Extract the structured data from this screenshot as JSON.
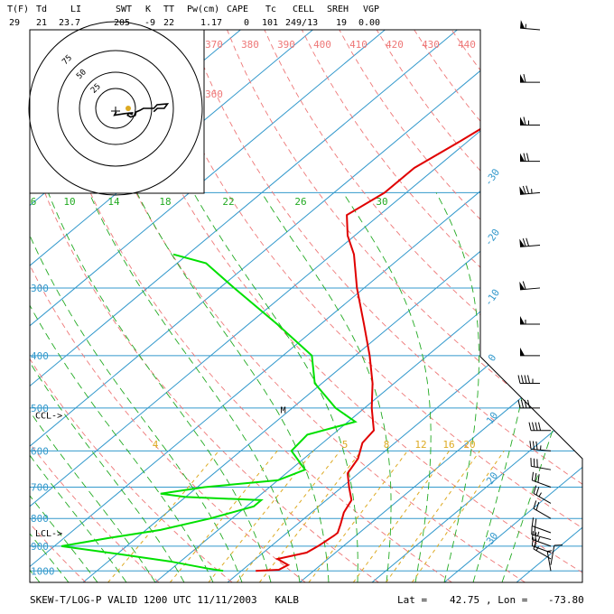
{
  "header": {
    "fields": [
      {
        "label": "T(F)",
        "value": "29"
      },
      {
        "label": "Td",
        "value": "21"
      },
      {
        "label": "LI",
        "value": "23.7"
      },
      {
        "label": "SWT",
        "value": "205"
      },
      {
        "label": "K",
        "value": "-9"
      },
      {
        "label": "TT",
        "value": "22"
      },
      {
        "label": "Pw(cm)",
        "value": "1.17"
      },
      {
        "label": "CAPE",
        "value": "0"
      },
      {
        "label": "Tc",
        "value": "101"
      },
      {
        "label": "CELL",
        "value": "249/13"
      },
      {
        "label": "SREH",
        "value": "19"
      },
      {
        "label": "VGP",
        "value": "0.00"
      }
    ]
  },
  "footer": {
    "title": "SKEW-T/LOG-P VALID 1200 UTC 11/11/2003   KALB",
    "lat_label": "Lat =",
    "lat_value": "42.75",
    "lon_label": ", Lon =",
    "lon_value": "-73.80"
  },
  "colors": {
    "temperature": "#e00000",
    "dewpoint": "#00e000",
    "isobar": "#3399cc",
    "isotherm": "#3399cc",
    "dry_adiabat": "#ee7777",
    "moist_adiabat": "#22aa22",
    "mixing_ratio": "#ddaa22",
    "frame": "#000000",
    "hodograph": "#000000"
  },
  "chart_data": {
    "type": "line",
    "title": "SKEW-T/LOG-P VALID 1200 UTC 11/11/2003   KALB",
    "pressure_ticks": [
      "300",
      "400",
      "500",
      "600",
      "700",
      "800",
      "900",
      "1000"
    ],
    "isotherm_labels": [
      "-30",
      "-20",
      "-10",
      "0",
      "10",
      "20",
      "30"
    ],
    "dry_adiabat_labels": [
      "370",
      "380",
      "390",
      "400",
      "410",
      "420",
      "430",
      "440",
      "360"
    ],
    "moist_adiabat_labels": [
      "6",
      "10",
      "14",
      "18",
      "22",
      "26",
      "30"
    ],
    "mixing_ratio_labels": [
      "4",
      "5",
      "8",
      "12",
      "16",
      "20"
    ],
    "level_markers": [
      {
        "label": "CCL->",
        "pressure": 515
      },
      {
        "label": "LCL->",
        "pressure": 850
      }
    ],
    "marker_m": {
      "label": "M",
      "pressure": 505
    },
    "hodograph_rings": [
      "75",
      "50",
      "25"
    ],
    "series": [
      {
        "name": "temperature",
        "points": [
          [
            1000,
            2.0
          ],
          [
            995,
            5.0
          ],
          [
            975,
            5.5
          ],
          [
            950,
            3.0
          ],
          [
            925,
            6.0
          ],
          [
            900,
            6.5
          ],
          [
            860,
            7.0
          ],
          [
            850,
            7.0
          ],
          [
            820,
            6.0
          ],
          [
            780,
            4.5
          ],
          [
            740,
            3.5
          ],
          [
            700,
            1.0
          ],
          [
            660,
            -1.5
          ],
          [
            620,
            -2.5
          ],
          [
            580,
            -4.5
          ],
          [
            550,
            -5.0
          ],
          [
            500,
            -9.0
          ],
          [
            450,
            -13.0
          ],
          [
            400,
            -18.0
          ],
          [
            350,
            -24.0
          ],
          [
            300,
            -31.0
          ],
          [
            260,
            -37.0
          ],
          [
            240,
            -41.0
          ],
          [
            220,
            -44.5
          ],
          [
            200,
            -43.0
          ],
          [
            180,
            -43.0
          ],
          [
            160,
            -41.0
          ],
          [
            130,
            -38.0
          ],
          [
            115,
            -38.5
          ],
          [
            100,
            -36.0
          ]
        ]
      },
      {
        "name": "dewpoint",
        "points": [
          [
            1000,
            -2.5
          ],
          [
            990,
            -5.0
          ],
          [
            960,
            -11.5
          ],
          [
            930,
            -20.0
          ],
          [
            900,
            -29.0
          ],
          [
            870,
            -24.0
          ],
          [
            840,
            -18.0
          ],
          [
            800,
            -13.0
          ],
          [
            760,
            -9.0
          ],
          [
            740,
            -9.0
          ],
          [
            730,
            -20.0
          ],
          [
            720,
            -24.0
          ],
          [
            700,
            -19.0
          ],
          [
            680,
            -10.0
          ],
          [
            650,
            -8.0
          ],
          [
            600,
            -13.0
          ],
          [
            560,
            -13.5
          ],
          [
            530,
            -9.0
          ],
          [
            500,
            -14.0
          ],
          [
            450,
            -21.0
          ],
          [
            400,
            -26.0
          ],
          [
            350,
            -36.0
          ],
          [
            300,
            -48.0
          ],
          [
            270,
            -56.0
          ],
          [
            260,
            -62.0
          ]
        ]
      }
    ],
    "wind_barbs": [
      {
        "pressure": 1000,
        "dir": 350,
        "speed": 5
      },
      {
        "pressure": 975,
        "dir": 10,
        "speed": 10
      },
      {
        "pressure": 950,
        "dir": 300,
        "speed": 15
      },
      {
        "pressure": 925,
        "dir": 290,
        "speed": 20
      },
      {
        "pressure": 900,
        "dir": 290,
        "speed": 25
      },
      {
        "pressure": 875,
        "dir": 285,
        "speed": 25
      },
      {
        "pressure": 850,
        "dir": 290,
        "speed": 20
      },
      {
        "pressure": 800,
        "dir": 300,
        "speed": 20
      },
      {
        "pressure": 750,
        "dir": 300,
        "speed": 25
      },
      {
        "pressure": 700,
        "dir": 290,
        "speed": 30
      },
      {
        "pressure": 650,
        "dir": 280,
        "speed": 30
      },
      {
        "pressure": 600,
        "dir": 275,
        "speed": 35
      },
      {
        "pressure": 550,
        "dir": 270,
        "speed": 40
      },
      {
        "pressure": 500,
        "dir": 270,
        "speed": 40
      },
      {
        "pressure": 450,
        "dir": 270,
        "speed": 45
      },
      {
        "pressure": 400,
        "dir": 270,
        "speed": 50
      },
      {
        "pressure": 350,
        "dir": 270,
        "speed": 55
      },
      {
        "pressure": 300,
        "dir": 265,
        "speed": 60
      },
      {
        "pressure": 250,
        "dir": 265,
        "speed": 70
      },
      {
        "pressure": 200,
        "dir": 265,
        "speed": 75
      },
      {
        "pressure": 175,
        "dir": 270,
        "speed": 70
      },
      {
        "pressure": 150,
        "dir": 270,
        "speed": 65
      },
      {
        "pressure": 125,
        "dir": 270,
        "speed": 60
      },
      {
        "pressure": 100,
        "dir": 275,
        "speed": 55
      }
    ]
  }
}
